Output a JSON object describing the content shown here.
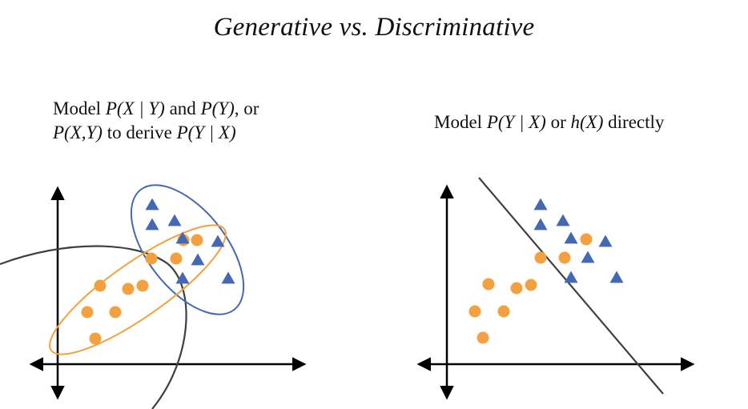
{
  "title": "Generative vs. Discriminative",
  "generative": {
    "caption_line1": [
      {
        "t": "Model ",
        "i": false
      },
      {
        "t": "P(X | Y)",
        "i": true
      },
      {
        "t": " and ",
        "i": false
      },
      {
        "t": "P(Y)",
        "i": true
      },
      {
        "t": ", or",
        "i": false
      }
    ],
    "caption_line2": [
      {
        "t": "P(X,Y)",
        "i": true
      },
      {
        "t": " to derive ",
        "i": false
      },
      {
        "t": "P(Y | X)",
        "i": true
      }
    ]
  },
  "discriminative": {
    "caption_line1": [
      {
        "t": "Model ",
        "i": false
      },
      {
        "t": "P(Y | X)",
        "i": true
      },
      {
        "t": " or ",
        "i": false
      },
      {
        "t": "h(X)",
        "i": true
      },
      {
        "t": " directly",
        "i": false
      }
    ]
  },
  "colors": {
    "circle_class": "#F4A03E",
    "triangle_class": "#4468B4",
    "orange_ellipse": "#F4A03E",
    "blue_ellipse": "#4468B4",
    "boundary": "#404040",
    "axes": "#000000"
  },
  "icons": {
    "circle": "orange-circle-icon",
    "triangle": "blue-triangle-icon"
  }
}
